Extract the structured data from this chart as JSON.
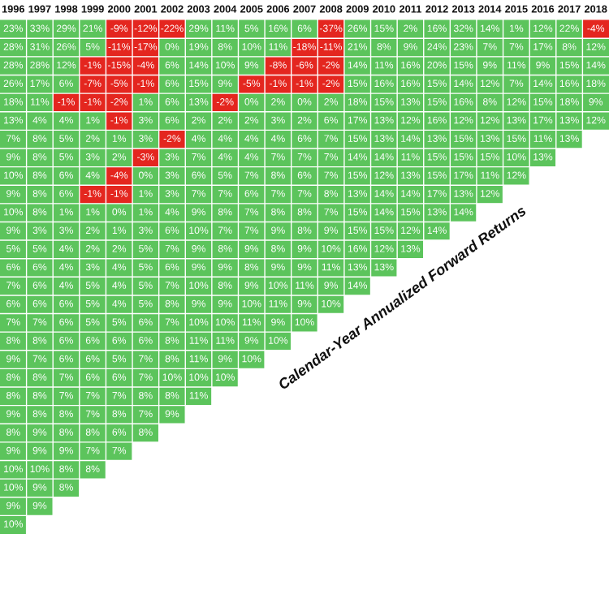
{
  "chart_data": {
    "type": "heatmap",
    "title": "Calendar-Year Annualized Forward Returns",
    "categories": [
      "1996",
      "1997",
      "1998",
      "1999",
      "2000",
      "2001",
      "2002",
      "2003",
      "2004",
      "2005",
      "2006",
      "2007",
      "2008",
      "2009",
      "2010",
      "2011",
      "2012",
      "2013",
      "2014",
      "2015",
      "2016",
      "2017",
      "2018"
    ],
    "y_categories": [
      null,
      null,
      null,
      null,
      null,
      null,
      null,
      null,
      null,
      null,
      null,
      null,
      null,
      null,
      null,
      null,
      null,
      null,
      null,
      null,
      null,
      null,
      null,
      null,
      null,
      null,
      null,
      null
    ],
    "cells": [
      [
        23,
        33,
        29,
        21,
        -9,
        -12,
        -22,
        29,
        11,
        5,
        16,
        6,
        -37,
        26,
        15,
        2,
        16,
        32,
        14,
        1,
        12,
        22,
        -4
      ],
      [
        28,
        31,
        26,
        5,
        -11,
        -17,
        0,
        19,
        8,
        10,
        11,
        -18,
        -11,
        21,
        8,
        9,
        24,
        23,
        7,
        7,
        17,
        8,
        12
      ],
      [
        28,
        28,
        12,
        -1,
        -15,
        -4,
        6,
        14,
        10,
        9,
        -8,
        -6,
        -2,
        14,
        11,
        16,
        20,
        15,
        9,
        11,
        9,
        15,
        14
      ],
      [
        26,
        17,
        6,
        -7,
        -5,
        -1,
        6,
        15,
        9,
        -5,
        -1,
        -1,
        -2,
        15,
        16,
        16,
        15,
        14,
        12,
        7,
        14,
        16,
        18
      ],
      [
        18,
        11,
        -1,
        -1,
        -2,
        1,
        6,
        13,
        -2,
        0,
        2,
        0,
        2,
        18,
        15,
        13,
        15,
        16,
        8,
        12,
        15,
        18,
        9
      ],
      [
        13,
        4,
        4,
        1,
        -1,
        3,
        6,
        2,
        2,
        2,
        3,
        2,
        6,
        17,
        13,
        12,
        16,
        12,
        12,
        13,
        17,
        13,
        12
      ],
      [
        7,
        8,
        5,
        2,
        1,
        3,
        -2,
        4,
        4,
        4,
        4,
        6,
        7,
        15,
        13,
        14,
        13,
        15,
        13,
        15,
        11,
        13,
        null
      ],
      [
        9,
        8,
        5,
        3,
        2,
        -3,
        3,
        7,
        4,
        4,
        7,
        7,
        7,
        14,
        14,
        11,
        15,
        15,
        15,
        10,
        13,
        null,
        null
      ],
      [
        10,
        8,
        6,
        4,
        -4,
        0,
        3,
        6,
        5,
        7,
        8,
        6,
        7,
        15,
        12,
        13,
        15,
        17,
        11,
        12,
        null,
        null,
        null
      ],
      [
        9,
        8,
        6,
        -1,
        -1,
        1,
        3,
        7,
        7,
        6,
        7,
        7,
        8,
        13,
        14,
        14,
        17,
        13,
        12,
        null,
        null,
        null,
        null
      ],
      [
        10,
        8,
        1,
        1,
        0,
        1,
        4,
        9,
        8,
        7,
        8,
        8,
        7,
        15,
        14,
        15,
        13,
        14,
        null,
        null,
        null,
        null,
        null
      ],
      [
        9,
        3,
        3,
        2,
        1,
        3,
        6,
        10,
        7,
        7,
        9,
        8,
        9,
        15,
        15,
        12,
        14,
        null,
        null,
        null,
        null,
        null,
        null
      ],
      [
        5,
        5,
        4,
        2,
        2,
        5,
        7,
        9,
        8,
        9,
        8,
        9,
        10,
        16,
        12,
        13,
        null,
        null,
        null,
        null,
        null,
        null,
        null
      ],
      [
        6,
        6,
        4,
        3,
        4,
        5,
        6,
        9,
        9,
        8,
        9,
        9,
        11,
        13,
        13,
        null,
        null,
        null,
        null,
        null,
        null,
        null,
        null
      ],
      [
        7,
        6,
        4,
        5,
        4,
        5,
        7,
        10,
        8,
        9,
        10,
        11,
        9,
        14,
        null,
        null,
        null,
        null,
        null,
        null,
        null,
        null,
        null
      ],
      [
        6,
        6,
        6,
        5,
        4,
        5,
        8,
        9,
        9,
        10,
        11,
        9,
        10,
        null,
        null,
        null,
        null,
        null,
        null,
        null,
        null,
        null,
        null
      ],
      [
        7,
        7,
        6,
        5,
        5,
        6,
        7,
        10,
        10,
        11,
        9,
        10,
        null,
        null,
        null,
        null,
        null,
        null,
        null,
        null,
        null,
        null,
        null
      ],
      [
        8,
        8,
        6,
        6,
        6,
        6,
        8,
        11,
        11,
        9,
        10,
        null,
        null,
        null,
        null,
        null,
        null,
        null,
        null,
        null,
        null,
        null,
        null
      ],
      [
        9,
        7,
        6,
        6,
        5,
        7,
        8,
        11,
        9,
        10,
        null,
        null,
        null,
        null,
        null,
        null,
        null,
        null,
        null,
        null,
        null,
        null,
        null
      ],
      [
        8,
        8,
        7,
        6,
        6,
        7,
        10,
        10,
        10,
        null,
        null,
        null,
        null,
        null,
        null,
        null,
        null,
        null,
        null,
        null,
        null,
        null,
        null
      ],
      [
        8,
        8,
        7,
        7,
        7,
        8,
        8,
        11,
        null,
        null,
        null,
        null,
        null,
        null,
        null,
        null,
        null,
        null,
        null,
        null,
        null,
        null,
        null
      ],
      [
        9,
        8,
        8,
        7,
        8,
        7,
        9,
        null,
        null,
        null,
        null,
        null,
        null,
        null,
        null,
        null,
        null,
        null,
        null,
        null,
        null,
        null,
        null
      ],
      [
        8,
        9,
        8,
        8,
        6,
        8,
        null,
        null,
        null,
        null,
        null,
        null,
        null,
        null,
        null,
        null,
        null,
        null,
        null,
        null,
        null,
        null,
        null
      ],
      [
        9,
        9,
        9,
        7,
        7,
        null,
        null,
        null,
        null,
        null,
        null,
        null,
        null,
        null,
        null,
        null,
        null,
        null,
        null,
        null,
        null,
        null,
        null
      ],
      [
        10,
        10,
        8,
        8,
        null,
        null,
        null,
        null,
        null,
        null,
        null,
        null,
        null,
        null,
        null,
        null,
        null,
        null,
        null,
        null,
        null,
        null,
        null
      ],
      [
        10,
        9,
        8,
        null,
        null,
        null,
        null,
        null,
        null,
        null,
        null,
        null,
        null,
        null,
        null,
        null,
        null,
        null,
        null,
        null,
        null,
        null,
        null
      ],
      [
        9,
        9,
        null,
        null,
        null,
        null,
        null,
        null,
        null,
        null,
        null,
        null,
        null,
        null,
        null,
        null,
        null,
        null,
        null,
        null,
        null,
        null,
        null
      ],
      [
        10,
        null,
        null,
        null,
        null,
        null,
        null,
        null,
        null,
        null,
        null,
        null,
        null,
        null,
        null,
        null,
        null,
        null,
        null,
        null,
        null,
        null,
        null
      ]
    ],
    "cell_labels": [
      [
        "23%",
        "33%",
        "29%",
        "21%",
        "-9%",
        "-12%",
        "-22%",
        "29%",
        "11%",
        "5%",
        "16%",
        "6%",
        "-37%",
        "26%",
        "15%",
        "2%",
        "16%",
        "32%",
        "14%",
        "1%",
        "12%",
        "22%",
        "-4%"
      ],
      [
        "28%",
        "31%",
        "26%",
        "5%",
        "-11%",
        "-17%",
        "0%",
        "19%",
        "8%",
        "10%",
        "11%",
        "-18%",
        "-11%",
        "21%",
        "8%",
        "9%",
        "24%",
        "23%",
        "7%",
        "7%",
        "17%",
        "8%",
        "12%"
      ],
      [
        "28%",
        "28%",
        "12%",
        "-1%",
        "-15%",
        "-4%",
        "6%",
        "14%",
        "10%",
        "9%",
        "-8%",
        "-6%",
        "-2%",
        "14%",
        "11%",
        "16%",
        "20%",
        "15%",
        "9%",
        "11%",
        "9%",
        "15%",
        "14%"
      ],
      [
        "26%",
        "17%",
        "6%",
        "-7%",
        "-5%",
        "-1%",
        "6%",
        "15%",
        "9%",
        "-5%",
        "-1%",
        "-1%",
        "-2%",
        "15%",
        "16%",
        "16%",
        "15%",
        "14%",
        "12%",
        "7%",
        "14%",
        "16%",
        "18%"
      ],
      [
        "18%",
        "11%",
        "-1%",
        "-1%",
        "-2%",
        "1%",
        "6%",
        "13%",
        "-2%",
        "0%",
        "2%",
        "0%",
        "2%",
        "18%",
        "15%",
        "13%",
        "15%",
        "16%",
        "8%",
        "12%",
        "15%",
        "18%",
        "9%"
      ],
      [
        "13%",
        "4%",
        "4%",
        "1%",
        "-1%",
        "3%",
        "6%",
        "2%",
        "2%",
        "2%",
        "3%",
        "2%",
        "6%",
        "17%",
        "13%",
        "12%",
        "16%",
        "12%",
        "12%",
        "13%",
        "17%",
        "13%",
        "12%"
      ],
      [
        "7%",
        "8%",
        "5%",
        "2%",
        "1%",
        "3%",
        "-2%",
        "4%",
        "4%",
        "4%",
        "4%",
        "6%",
        "7%",
        "15%",
        "13%",
        "14%",
        "13%",
        "15%",
        "13%",
        "15%",
        "11%",
        "13%",
        null
      ],
      [
        "9%",
        "8%",
        "5%",
        "3%",
        "2%",
        "-3%",
        "3%",
        "7%",
        "4%",
        "4%",
        "7%",
        "7%",
        "7%",
        "14%",
        "14%",
        "11%",
        "15%",
        "15%",
        "15%",
        "10%",
        "13%",
        null,
        null
      ],
      [
        "10%",
        "8%",
        "6%",
        "4%",
        "-4%",
        "0%",
        "3%",
        "6%",
        "5%",
        "7%",
        "8%",
        "6%",
        "7%",
        "15%",
        "12%",
        "13%",
        "15%",
        "17%",
        "11%",
        "12%",
        null,
        null,
        null
      ],
      [
        "9%",
        "8%",
        "6%",
        "-1%",
        "-1%",
        "1%",
        "3%",
        "7%",
        "7%",
        "6%",
        "7%",
        "7%",
        "8%",
        "13%",
        "14%",
        "14%",
        "17%",
        "13%",
        "12%",
        null,
        null,
        null,
        null
      ],
      [
        "10%",
        "8%",
        "1%",
        "1%",
        "0%",
        "1%",
        "4%",
        "9%",
        "8%",
        "7%",
        "8%",
        "8%",
        "7%",
        "15%",
        "14%",
        "15%",
        "13%",
        "14%",
        null,
        null,
        null,
        null,
        null
      ],
      [
        "9%",
        "3%",
        "3%",
        "2%",
        "1%",
        "3%",
        "6%",
        "10%",
        "7%",
        "7%",
        "9%",
        "8%",
        "9%",
        "15%",
        "15%",
        "12%",
        "14%",
        null,
        null,
        null,
        null,
        null,
        null
      ],
      [
        "5%",
        "5%",
        "4%",
        "2%",
        "2%",
        "5%",
        "7%",
        "9%",
        "8%",
        "9%",
        "8%",
        "9%",
        "10%",
        "16%",
        "12%",
        "13%",
        null,
        null,
        null,
        null,
        null,
        null,
        null
      ],
      [
        "6%",
        "6%",
        "4%",
        "3%",
        "4%",
        "5%",
        "6%",
        "9%",
        "9%",
        "8%",
        "9%",
        "9%",
        "11%",
        "13%",
        "13%",
        null,
        null,
        null,
        null,
        null,
        null,
        null,
        null
      ],
      [
        "7%",
        "6%",
        "4%",
        "5%",
        "4%",
        "5%",
        "7%",
        "10%",
        "8%",
        "9%",
        "10%",
        "11%",
        "9%",
        "14%",
        null,
        null,
        null,
        null,
        null,
        null,
        null,
        null,
        null
      ],
      [
        "6%",
        "6%",
        "6%",
        "5%",
        "4%",
        "5%",
        "8%",
        "9%",
        "9%",
        "10%",
        "11%",
        "9%",
        "10%",
        null,
        null,
        null,
        null,
        null,
        null,
        null,
        null,
        null,
        null
      ],
      [
        "7%",
        "7%",
        "6%",
        "5%",
        "5%",
        "6%",
        "7%",
        "10%",
        "10%",
        "11%",
        "9%",
        "10%",
        null,
        null,
        null,
        null,
        null,
        null,
        null,
        null,
        null,
        null,
        null
      ],
      [
        "8%",
        "8%",
        "6%",
        "6%",
        "6%",
        "6%",
        "8%",
        "11%",
        "11%",
        "9%",
        "10%",
        null,
        null,
        null,
        null,
        null,
        null,
        null,
        null,
        null,
        null,
        null,
        null
      ],
      [
        "9%",
        "7%",
        "6%",
        "6%",
        "5%",
        "7%",
        "8%",
        "11%",
        "9%",
        "10%",
        null,
        null,
        null,
        null,
        null,
        null,
        null,
        null,
        null,
        null,
        null,
        null,
        null
      ],
      [
        "8%",
        "8%",
        "7%",
        "6%",
        "6%",
        "7%",
        "10%",
        "10%",
        "10%",
        null,
        null,
        null,
        null,
        null,
        null,
        null,
        null,
        null,
        null,
        null,
        null,
        null,
        null
      ],
      [
        "8%",
        "8%",
        "7%",
        "7%",
        "7%",
        "8%",
        "8%",
        "11%",
        null,
        null,
        null,
        null,
        null,
        null,
        null,
        null,
        null,
        null,
        null,
        null,
        null,
        null,
        null
      ],
      [
        "9%",
        "8%",
        "8%",
        "7%",
        "8%",
        "7%",
        "9%",
        null,
        null,
        null,
        null,
        null,
        null,
        null,
        null,
        null,
        null,
        null,
        null,
        null,
        null,
        null,
        null
      ],
      [
        "8%",
        "9%",
        "8%",
        "8%",
        "6%",
        "8%",
        null,
        null,
        null,
        null,
        null,
        null,
        null,
        null,
        null,
        null,
        null,
        null,
        null,
        null,
        null,
        null,
        null
      ],
      [
        "9%",
        "9%",
        "9%",
        "7%",
        "7%",
        null,
        null,
        null,
        null,
        null,
        null,
        null,
        null,
        null,
        null,
        null,
        null,
        null,
        null,
        null,
        null,
        null,
        null
      ],
      [
        "10%",
        "10%",
        "8%",
        "8%",
        null,
        null,
        null,
        null,
        null,
        null,
        null,
        null,
        null,
        null,
        null,
        null,
        null,
        null,
        null,
        null,
        null,
        null,
        null
      ],
      [
        "10%",
        "9%",
        "8%",
        null,
        null,
        null,
        null,
        null,
        null,
        null,
        null,
        null,
        null,
        null,
        null,
        null,
        null,
        null,
        null,
        null,
        null,
        null,
        null
      ],
      [
        "9%",
        "9%",
        null,
        null,
        null,
        null,
        null,
        null,
        null,
        null,
        null,
        null,
        null,
        null,
        null,
        null,
        null,
        null,
        null,
        null,
        null,
        null,
        null
      ],
      [
        "10%",
        null,
        null,
        null,
        null,
        null,
        null,
        null,
        null,
        null,
        null,
        null,
        null,
        null,
        null,
        null,
        null,
        null,
        null,
        null,
        null,
        null,
        null
      ]
    ]
  }
}
